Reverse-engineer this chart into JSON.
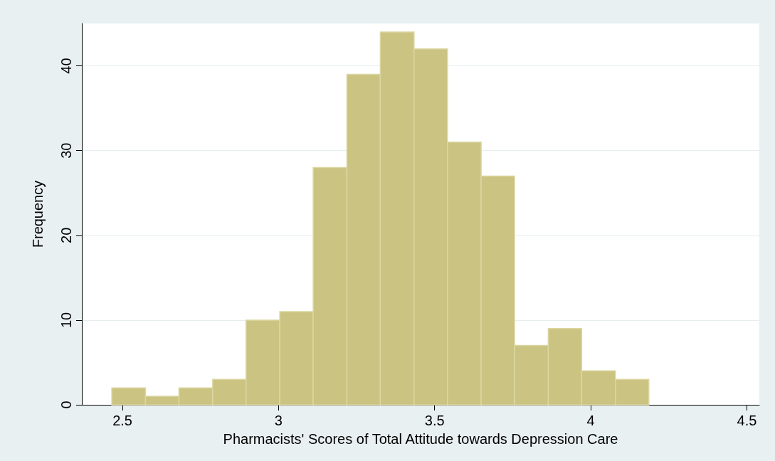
{
  "chart_data": {
    "type": "histogram",
    "xlabel": "Pharmacists' Scores of Total Attitude towards Depression Care",
    "ylabel": "Frequency",
    "bins": [
      2.466,
      2.574,
      2.681,
      2.789,
      2.896,
      3.004,
      3.111,
      3.219,
      3.326,
      3.434,
      3.541,
      3.649,
      3.756,
      3.864,
      3.971,
      4.079,
      4.186
    ],
    "values": [
      2,
      1,
      2,
      3,
      10,
      11,
      28,
      39,
      44,
      42,
      31,
      27,
      7,
      9,
      4,
      3
    ],
    "color": "#cbc381",
    "xlim": [
      2.37,
      4.54
    ],
    "xticks": [
      2.5,
      3,
      3.5,
      4,
      4.5
    ],
    "ylim": [
      0,
      45
    ],
    "yticks": [
      0,
      10,
      20,
      30,
      40
    ],
    "grid": "y"
  }
}
